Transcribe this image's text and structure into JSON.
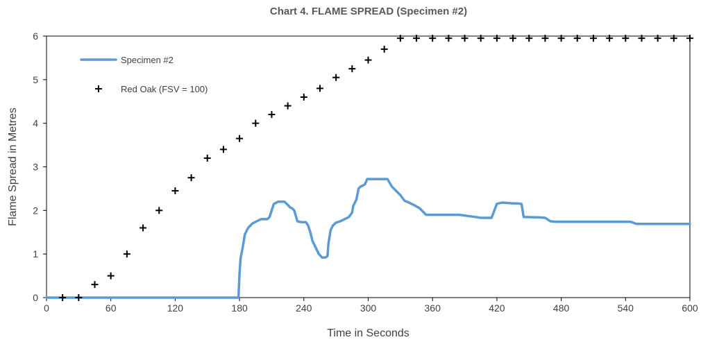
{
  "chart_data": {
    "type": "line",
    "title": "Chart 4. FLAME SPREAD (Specimen #2)",
    "xlabel": "Time in Seconds",
    "ylabel": "Flame Spread in Metres",
    "xlim": [
      0,
      600
    ],
    "ylim": [
      0,
      6
    ],
    "x_ticks": [
      0,
      60,
      120,
      180,
      240,
      300,
      360,
      420,
      480,
      540,
      600
    ],
    "y_ticks": [
      0,
      1,
      2,
      3,
      4,
      5,
      6
    ],
    "grid": false,
    "legend_position": "top-left",
    "series": [
      {
        "name": "Specimen #2",
        "style": "line",
        "color": "#5B9BD5",
        "x": [
          0,
          179,
          180,
          181,
          183,
          185,
          188,
          192,
          196,
          200,
          203,
          206,
          208,
          212,
          216,
          220,
          222,
          224,
          226,
          227,
          229,
          231,
          234,
          238,
          240,
          242,
          244,
          246,
          248,
          251,
          254,
          257,
          260,
          262,
          263,
          265,
          267,
          270,
          274,
          278,
          282,
          285,
          286,
          289,
          291,
          293,
          295,
          297,
          299,
          301,
          303,
          306,
          312,
          318,
          322,
          326,
          330,
          334,
          338,
          343,
          348,
          352,
          354,
          358,
          370,
          385,
          400,
          405,
          415,
          420,
          425,
          435,
          440,
          443,
          445,
          460,
          465,
          470,
          475,
          490,
          510,
          530,
          545,
          550,
          600
        ],
        "y": [
          0,
          0,
          0.55,
          0.9,
          1.15,
          1.45,
          1.6,
          1.7,
          1.75,
          1.8,
          1.8,
          1.8,
          1.85,
          2.15,
          2.2,
          2.2,
          2.2,
          2.15,
          2.1,
          2.07,
          2.05,
          2.0,
          1.75,
          1.73,
          1.73,
          1.73,
          1.65,
          1.5,
          1.3,
          1.15,
          1.0,
          0.92,
          0.92,
          0.95,
          1.25,
          1.55,
          1.65,
          1.72,
          1.75,
          1.8,
          1.85,
          1.95,
          2.1,
          2.25,
          2.5,
          2.55,
          2.57,
          2.6,
          2.72,
          2.72,
          2.72,
          2.72,
          2.72,
          2.72,
          2.55,
          2.45,
          2.35,
          2.22,
          2.18,
          2.12,
          2.05,
          1.95,
          1.9,
          1.9,
          1.9,
          1.9,
          1.85,
          1.83,
          1.83,
          2.15,
          2.18,
          2.16,
          2.16,
          2.15,
          1.85,
          1.84,
          1.83,
          1.75,
          1.74,
          1.74,
          1.74,
          1.74,
          1.74,
          1.69,
          1.69
        ]
      },
      {
        "name": "Red Oak (FSV = 100)",
        "style": "marker",
        "marker": "cross",
        "color": "#000000",
        "x": [
          15,
          30,
          45,
          60,
          75,
          90,
          105,
          120,
          135,
          150,
          165,
          180,
          195,
          210,
          225,
          240,
          255,
          270,
          285,
          300,
          315,
          330,
          345,
          360,
          375,
          390,
          405,
          420,
          435,
          450,
          465,
          480,
          495,
          510,
          525,
          540,
          555,
          570,
          585,
          600
        ],
        "y": [
          0,
          0,
          0.3,
          0.5,
          1.0,
          1.6,
          2.0,
          2.45,
          2.75,
          3.2,
          3.4,
          3.65,
          4.0,
          4.2,
          4.4,
          4.6,
          4.8,
          5.05,
          5.25,
          5.45,
          5.7,
          5.95,
          5.95,
          5.95,
          5.95,
          5.95,
          5.95,
          5.95,
          5.95,
          5.95,
          5.95,
          5.95,
          5.95,
          5.95,
          5.95,
          5.95,
          5.95,
          5.95,
          5.95,
          5.95
        ]
      }
    ]
  }
}
